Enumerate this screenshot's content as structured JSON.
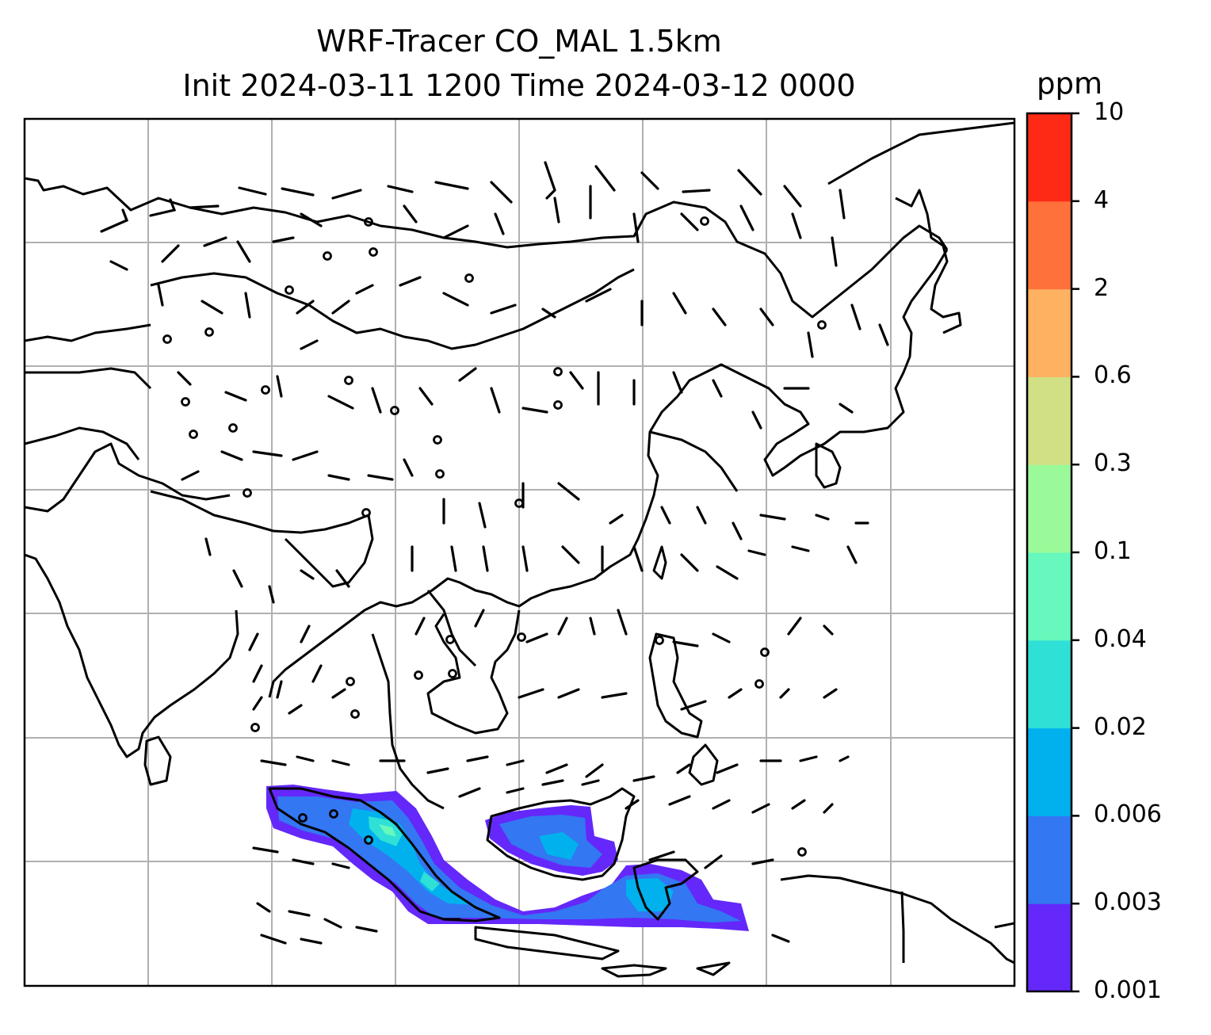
{
  "title": {
    "line1": "WRF-Tracer CO_MAL 1.5km",
    "line2": "Init 2024-03-11 1200 Time 2024-03-12 0000"
  },
  "colorbar": {
    "unit": "ppm",
    "levels": [
      "0.001",
      "0.003",
      "0.006",
      "0.02",
      "0.04",
      "0.1",
      "0.3",
      "0.6",
      "2",
      "4",
      "10"
    ],
    "colors": [
      "#6428fa",
      "#3377f2",
      "#00b1ee",
      "#2ee0d5",
      "#66f8bd",
      "#9afa99",
      "#d1e084",
      "#fdb161",
      "#ff713b",
      "#ff2a16"
    ]
  },
  "map": {
    "frame_color": "#000000",
    "gridline_color": "#b0b0b0",
    "coastline_color": "#000000",
    "wind_barb_color": "#000000"
  }
}
